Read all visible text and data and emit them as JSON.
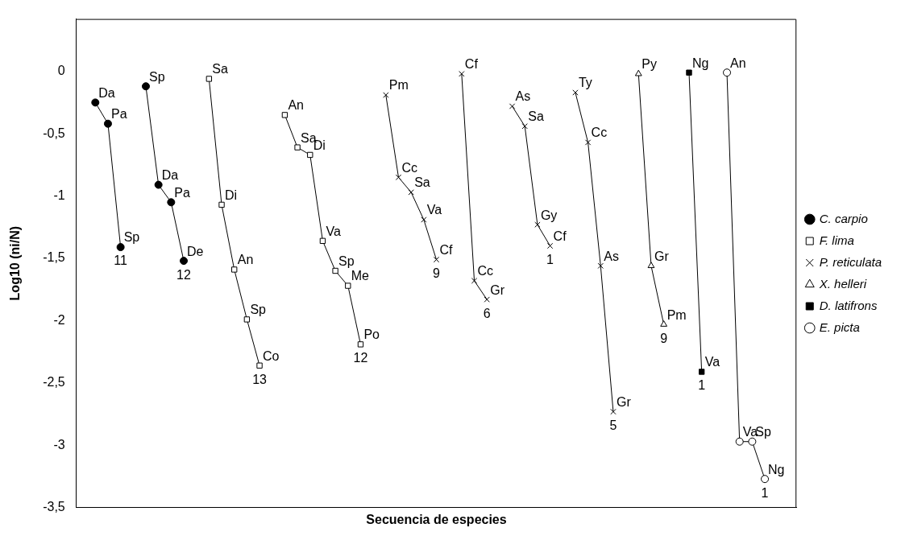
{
  "chart_data": {
    "type": "line",
    "xlabel": "Secuencia de especies",
    "ylabel": "Log10 (ni/N)",
    "categories": [
      null,
      null,
      null,
      null,
      null,
      null,
      null,
      null,
      null,
      null,
      null,
      null,
      null,
      null,
      null,
      null,
      null,
      null,
      null,
      null,
      null,
      null,
      null,
      null,
      null,
      null,
      null,
      null,
      null,
      null,
      null,
      null,
      null,
      null,
      null,
      null,
      null,
      null,
      null,
      null,
      null,
      null,
      null,
      null,
      null,
      null,
      null,
      null,
      null,
      null,
      null,
      null,
      null,
      null,
      null,
      null,
      null
    ],
    "ylim": [
      -3.5,
      0.42
    ],
    "yticks": [
      0,
      {
        "value": -0.5,
        "label": "-0,5"
      },
      -1,
      {
        "value": -1.5,
        "label": "-1,5"
      },
      -2,
      {
        "value": -2.5,
        "label": "-2,5"
      },
      -3,
      {
        "value": -3.5,
        "label": "-3,5"
      }
    ],
    "grid": false,
    "legend": "right",
    "tick_labels": "y",
    "line_style": "solid",
    "series": [
      {
        "name": "C. carpio",
        "color": "#000000",
        "marker": "circle",
        "values": [
          null,
          -0.25,
          -0.42,
          -1.41,
          null,
          -0.12,
          -0.91,
          -1.05,
          -1.52,
          null,
          null,
          null,
          null,
          null,
          null,
          null,
          null,
          null,
          null,
          null,
          null,
          null,
          null,
          null,
          null,
          null,
          null,
          null,
          null,
          null,
          null,
          null,
          null,
          null,
          null,
          null,
          null,
          null,
          null,
          null,
          null,
          null,
          null,
          null,
          null,
          null,
          null,
          null,
          null,
          null,
          null,
          null,
          null,
          null,
          null,
          null,
          null
        ],
        "value_labels": [
          null,
          "Da",
          "Pa",
          "Sp",
          null,
          "Sp",
          "Da",
          "Pa",
          "De",
          null,
          null,
          null,
          null,
          null,
          null,
          null,
          null,
          null,
          null,
          null,
          null,
          null,
          null,
          null,
          null,
          null,
          null,
          null,
          null,
          null,
          null,
          null,
          null,
          null,
          null,
          null,
          null,
          null,
          null,
          null,
          null,
          null,
          null,
          null,
          null,
          null,
          null,
          null,
          null,
          null,
          null,
          null,
          null,
          null,
          null,
          null,
          null
        ]
      },
      {
        "name": "F. lima",
        "color": "#000000",
        "marker": "square",
        "values": [
          null,
          null,
          null,
          null,
          null,
          null,
          null,
          null,
          null,
          null,
          -0.06,
          -1.07,
          -1.59,
          -1.99,
          -2.36,
          null,
          -0.35,
          -0.61,
          -0.67,
          -1.36,
          -1.6,
          -1.72,
          -2.19,
          null,
          null,
          null,
          null,
          null,
          null,
          null,
          null,
          null,
          null,
          null,
          null,
          null,
          null,
          null,
          null,
          null,
          null,
          null,
          null,
          null,
          null,
          null,
          null,
          null,
          null,
          null,
          null,
          null,
          null,
          null,
          null,
          null,
          null
        ],
        "value_labels": [
          null,
          null,
          null,
          null,
          null,
          null,
          null,
          null,
          null,
          null,
          "Sa",
          "Di",
          "An",
          "Sp",
          "Co",
          null,
          "An",
          "Sa",
          "Di",
          "Va",
          "Sp",
          "Me",
          "Po",
          null,
          null,
          null,
          null,
          null,
          null,
          null,
          null,
          null,
          null,
          null,
          null,
          null,
          null,
          null,
          null,
          null,
          null,
          null,
          null,
          null,
          null,
          null,
          null,
          null,
          null,
          null,
          null,
          null,
          null,
          null,
          null,
          null,
          null
        ]
      },
      {
        "name": "P. reticulata",
        "color": "#000000",
        "marker": "cross",
        "values": [
          null,
          null,
          null,
          null,
          null,
          null,
          null,
          null,
          null,
          null,
          null,
          null,
          null,
          null,
          null,
          null,
          null,
          null,
          null,
          null,
          null,
          null,
          null,
          null,
          -0.19,
          -0.85,
          -0.97,
          -1.19,
          -1.51,
          null,
          -0.02,
          -1.68,
          -1.83,
          null,
          -0.28,
          -0.44,
          -1.23,
          -1.4,
          null,
          -0.17,
          -0.57,
          -1.56,
          -2.73,
          null,
          null,
          null,
          null,
          null,
          null,
          null,
          null,
          null,
          null,
          null,
          null,
          null,
          null
        ],
        "value_labels": [
          null,
          null,
          null,
          null,
          null,
          null,
          null,
          null,
          null,
          null,
          null,
          null,
          null,
          null,
          null,
          null,
          null,
          null,
          null,
          null,
          null,
          null,
          null,
          null,
          "Pm",
          "Cc",
          "Sa",
          "Va",
          "Cf",
          null,
          "Cf",
          "Cc",
          "Gr",
          null,
          "As",
          "Sa",
          "Gy",
          "Cf",
          null,
          "Ty",
          "Cc",
          "As",
          "Gr",
          null,
          null,
          null,
          null,
          null,
          null,
          null,
          null,
          null,
          null,
          null,
          null,
          null,
          null
        ]
      },
      {
        "name": "X. helleri",
        "color": "#000000",
        "marker": "triangle",
        "values": [
          null,
          null,
          null,
          null,
          null,
          null,
          null,
          null,
          null,
          null,
          null,
          null,
          null,
          null,
          null,
          null,
          null,
          null,
          null,
          null,
          null,
          null,
          null,
          null,
          null,
          null,
          null,
          null,
          null,
          null,
          null,
          null,
          null,
          null,
          null,
          null,
          null,
          null,
          null,
          null,
          null,
          null,
          null,
          null,
          -0.02,
          -1.56,
          -2.03,
          null,
          null,
          null,
          null,
          null,
          null,
          null,
          null,
          null,
          null
        ],
        "value_labels": [
          null,
          null,
          null,
          null,
          null,
          null,
          null,
          null,
          null,
          null,
          null,
          null,
          null,
          null,
          null,
          null,
          null,
          null,
          null,
          null,
          null,
          null,
          null,
          null,
          null,
          null,
          null,
          null,
          null,
          null,
          null,
          null,
          null,
          null,
          null,
          null,
          null,
          null,
          null,
          null,
          null,
          null,
          null,
          null,
          "Py",
          "Gr",
          "Pm",
          null,
          null,
          null,
          null,
          null,
          null,
          null,
          null,
          null,
          null
        ]
      },
      {
        "name": "D. latifrons",
        "color": "#000000",
        "marker": "square",
        "values": [
          null,
          null,
          null,
          null,
          null,
          null,
          null,
          null,
          null,
          null,
          null,
          null,
          null,
          null,
          null,
          null,
          null,
          null,
          null,
          null,
          null,
          null,
          null,
          null,
          null,
          null,
          null,
          null,
          null,
          null,
          null,
          null,
          null,
          null,
          null,
          null,
          null,
          null,
          null,
          null,
          null,
          null,
          null,
          null,
          null,
          null,
          null,
          null,
          -0.01,
          -2.41,
          null,
          null,
          null,
          null,
          null,
          null,
          null
        ],
        "value_labels": [
          null,
          null,
          null,
          null,
          null,
          null,
          null,
          null,
          null,
          null,
          null,
          null,
          null,
          null,
          null,
          null,
          null,
          null,
          null,
          null,
          null,
          null,
          null,
          null,
          null,
          null,
          null,
          null,
          null,
          null,
          null,
          null,
          null,
          null,
          null,
          null,
          null,
          null,
          null,
          null,
          null,
          null,
          null,
          null,
          null,
          null,
          null,
          null,
          "Ng",
          "Va",
          null,
          null,
          null,
          null,
          null,
          null,
          null
        ]
      },
      {
        "name": "E. picta",
        "color": "#000000",
        "marker": "circle",
        "values": [
          null,
          null,
          null,
          null,
          null,
          null,
          null,
          null,
          null,
          null,
          null,
          null,
          null,
          null,
          null,
          null,
          null,
          null,
          null,
          null,
          null,
          null,
          null,
          null,
          null,
          null,
          null,
          null,
          null,
          null,
          null,
          null,
          null,
          null,
          null,
          null,
          null,
          null,
          null,
          null,
          null,
          null,
          null,
          null,
          null,
          null,
          null,
          null,
          null,
          null,
          null,
          -0.01,
          -2.97,
          -2.97,
          -3.27,
          null,
          null
        ],
        "value_labels": [
          null,
          null,
          null,
          null,
          null,
          null,
          null,
          null,
          null,
          null,
          null,
          null,
          null,
          null,
          null,
          null,
          null,
          null,
          null,
          null,
          null,
          null,
          null,
          null,
          null,
          null,
          null,
          null,
          null,
          null,
          null,
          null,
          null,
          null,
          null,
          null,
          null,
          null,
          null,
          null,
          null,
          null,
          null,
          null,
          null,
          null,
          null,
          null,
          null,
          null,
          null,
          "An",
          "Va",
          "Sp",
          "Ng",
          null,
          null
        ]
      }
    ],
    "annotations": [
      "11",
      "12",
      "13",
      "12",
      "9",
      "6",
      "1",
      "5",
      "9",
      "1",
      "1"
    ]
  }
}
